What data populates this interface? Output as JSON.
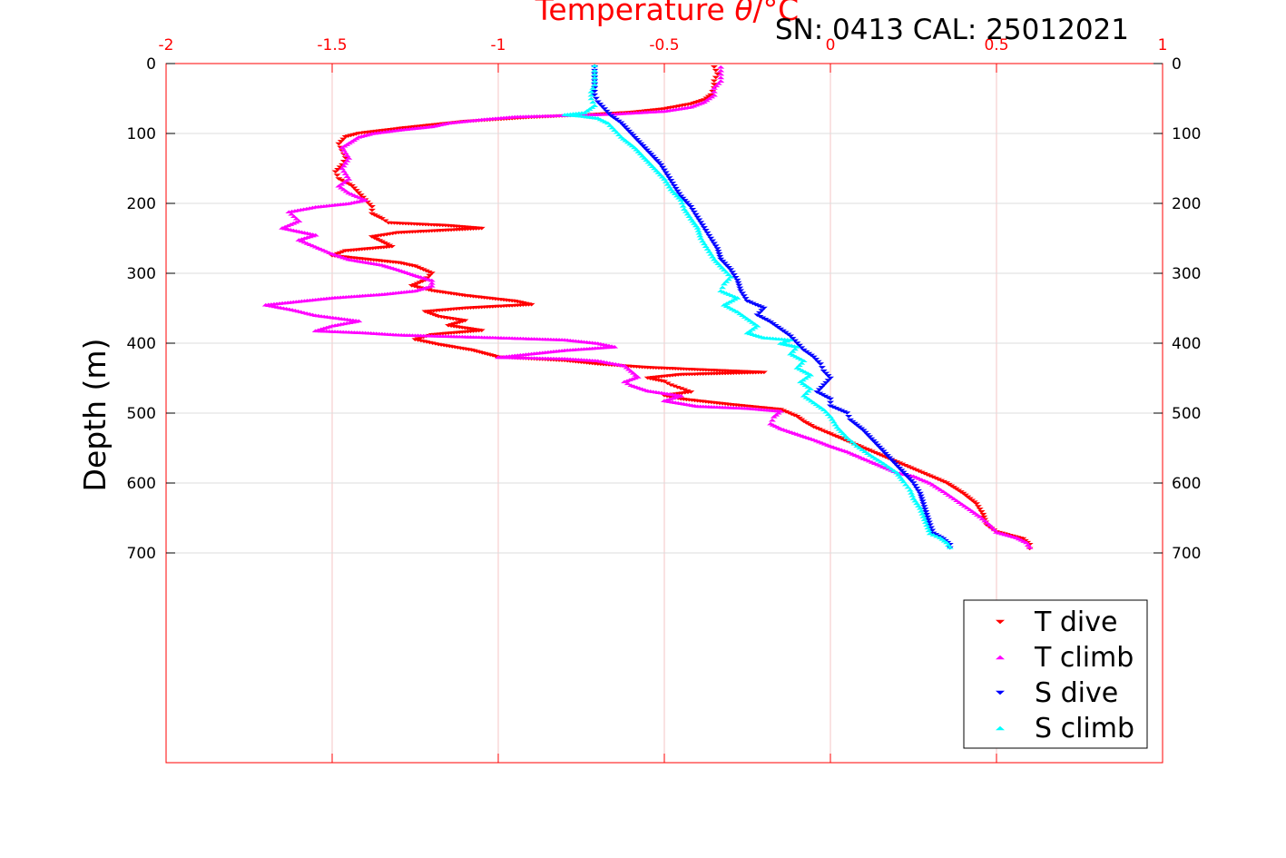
{
  "chart_data": {
    "type": "scatter",
    "title": "SN: 0413  CAL: 25012021",
    "xlabel_text": "Temperature ",
    "xlabel_symbol": "θ",
    "xlabel_unit": "/°C",
    "ylabel": "Depth (m)",
    "xlim": [
      -2,
      1
    ],
    "ylim": [
      0,
      1000
    ],
    "y_reversed": true,
    "x_axis_position": "top",
    "x_ticks": [
      "-2",
      "-1.5",
      "-1",
      "-0.5",
      "0",
      "0.5",
      "1"
    ],
    "y_ticks": [
      "0",
      "100",
      "200",
      "300",
      "400",
      "500",
      "600",
      "700"
    ],
    "grid": true,
    "legend_position": "bottom-right",
    "axis_color": "#ff0000",
    "series": [
      {
        "name": "T dive",
        "color": "#ff0000",
        "marker": "triangle-down",
        "points": [
          [
            -0.35,
            5
          ],
          [
            -0.34,
            15
          ],
          [
            -0.35,
            25
          ],
          [
            -0.35,
            35
          ],
          [
            -0.36,
            45
          ],
          [
            -0.38,
            52
          ],
          [
            -0.42,
            58
          ],
          [
            -0.5,
            65
          ],
          [
            -0.6,
            70
          ],
          [
            -0.75,
            74
          ],
          [
            -0.9,
            77
          ],
          [
            -1.0,
            80
          ],
          [
            -1.1,
            83
          ],
          [
            -1.2,
            88
          ],
          [
            -1.28,
            92
          ],
          [
            -1.35,
            96
          ],
          [
            -1.42,
            100
          ],
          [
            -1.46,
            105
          ],
          [
            -1.48,
            115
          ],
          [
            -1.47,
            125
          ],
          [
            -1.46,
            135
          ],
          [
            -1.47,
            145
          ],
          [
            -1.49,
            155
          ],
          [
            -1.48,
            165
          ],
          [
            -1.44,
            175
          ],
          [
            -1.42,
            185
          ],
          [
            -1.4,
            195
          ],
          [
            -1.38,
            205
          ],
          [
            -1.38,
            215
          ],
          [
            -1.35,
            222
          ],
          [
            -1.33,
            228
          ],
          [
            -1.15,
            232
          ],
          [
            -1.05,
            236
          ],
          [
            -1.3,
            242
          ],
          [
            -1.38,
            248
          ],
          [
            -1.35,
            255
          ],
          [
            -1.32,
            262
          ],
          [
            -1.46,
            268
          ],
          [
            -1.5,
            275
          ],
          [
            -1.4,
            280
          ],
          [
            -1.3,
            285
          ],
          [
            -1.25,
            290
          ],
          [
            -1.2,
            300
          ],
          [
            -1.22,
            310
          ],
          [
            -1.26,
            318
          ],
          [
            -1.2,
            325
          ],
          [
            -1.1,
            332
          ],
          [
            -0.95,
            340
          ],
          [
            -0.9,
            345
          ],
          [
            -1.1,
            350
          ],
          [
            -1.22,
            355
          ],
          [
            -1.18,
            362
          ],
          [
            -1.1,
            368
          ],
          [
            -1.15,
            375
          ],
          [
            -1.05,
            382
          ],
          [
            -1.2,
            388
          ],
          [
            -1.25,
            395
          ],
          [
            -1.18,
            402
          ],
          [
            -1.08,
            410
          ],
          [
            -1.0,
            420
          ],
          [
            -0.8,
            425
          ],
          [
            -0.7,
            430
          ],
          [
            -0.55,
            435
          ],
          [
            -0.4,
            438
          ],
          [
            -0.3,
            440
          ],
          [
            -0.2,
            442
          ],
          [
            -0.45,
            445
          ],
          [
            -0.55,
            450
          ],
          [
            -0.5,
            455
          ],
          [
            -0.48,
            460
          ],
          [
            -0.45,
            465
          ],
          [
            -0.42,
            470
          ],
          [
            -0.5,
            475
          ],
          [
            -0.45,
            480
          ],
          [
            -0.3,
            488
          ],
          [
            -0.15,
            495
          ],
          [
            -0.1,
            505
          ],
          [
            -0.08,
            512
          ],
          [
            -0.05,
            520
          ],
          [
            0.0,
            530
          ],
          [
            0.05,
            540
          ],
          [
            0.1,
            550
          ],
          [
            0.15,
            560
          ],
          [
            0.2,
            570
          ],
          [
            0.25,
            580
          ],
          [
            0.3,
            590
          ],
          [
            0.35,
            600
          ],
          [
            0.4,
            615
          ],
          [
            0.44,
            630
          ],
          [
            0.46,
            645
          ],
          [
            0.47,
            660
          ],
          [
            0.5,
            670
          ],
          [
            0.58,
            680
          ],
          [
            0.6,
            688
          ],
          [
            0.6,
            694
          ]
        ]
      },
      {
        "name": "T climb",
        "color": "#ff00ff",
        "marker": "triangle-up",
        "points": [
          [
            0.6,
            692
          ],
          [
            0.59,
            685
          ],
          [
            0.56,
            678
          ],
          [
            0.5,
            670
          ],
          [
            0.48,
            660
          ],
          [
            0.45,
            648
          ],
          [
            0.42,
            638
          ],
          [
            0.38,
            625
          ],
          [
            0.34,
            612
          ],
          [
            0.3,
            600
          ],
          [
            0.25,
            590
          ],
          [
            0.2,
            585
          ],
          [
            0.15,
            575
          ],
          [
            0.1,
            565
          ],
          [
            0.05,
            555
          ],
          [
            0.0,
            547
          ],
          [
            -0.05,
            538
          ],
          [
            -0.1,
            530
          ],
          [
            -0.15,
            522
          ],
          [
            -0.18,
            515
          ],
          [
            -0.17,
            505
          ],
          [
            -0.15,
            497
          ],
          [
            -0.25,
            493
          ],
          [
            -0.4,
            490
          ],
          [
            -0.5,
            482
          ],
          [
            -0.45,
            475
          ],
          [
            -0.55,
            468
          ],
          [
            -0.6,
            460
          ],
          [
            -0.62,
            455
          ],
          [
            -0.58,
            448
          ],
          [
            -0.6,
            440
          ],
          [
            -0.62,
            432
          ],
          [
            -0.7,
            425
          ],
          [
            -0.8,
            422
          ],
          [
            -1.0,
            420
          ],
          [
            -0.8,
            410
          ],
          [
            -0.65,
            405
          ],
          [
            -0.7,
            400
          ],
          [
            -0.8,
            395
          ],
          [
            -1.0,
            392
          ],
          [
            -1.3,
            388
          ],
          [
            -1.4,
            385
          ],
          [
            -1.55,
            382
          ],
          [
            -1.5,
            375
          ],
          [
            -1.42,
            368
          ],
          [
            -1.55,
            360
          ],
          [
            -1.62,
            352
          ],
          [
            -1.7,
            345
          ],
          [
            -1.6,
            340
          ],
          [
            -1.5,
            335
          ],
          [
            -1.35,
            330
          ],
          [
            -1.25,
            325
          ],
          [
            -1.2,
            318
          ],
          [
            -1.2,
            310
          ],
          [
            -1.25,
            303
          ],
          [
            -1.3,
            295
          ],
          [
            -1.35,
            288
          ],
          [
            -1.45,
            280
          ],
          [
            -1.5,
            272
          ],
          [
            -1.55,
            262
          ],
          [
            -1.6,
            252
          ],
          [
            -1.55,
            245
          ],
          [
            -1.65,
            235
          ],
          [
            -1.6,
            225
          ],
          [
            -1.63,
            212
          ],
          [
            -1.55,
            205
          ],
          [
            -1.45,
            200
          ],
          [
            -1.4,
            195
          ],
          [
            -1.45,
            185
          ],
          [
            -1.48,
            175
          ],
          [
            -1.45,
            165
          ],
          [
            -1.47,
            150
          ],
          [
            -1.45,
            135
          ],
          [
            -1.47,
            120
          ],
          [
            -1.42,
            105
          ],
          [
            -1.38,
            100
          ],
          [
            -1.3,
            95
          ],
          [
            -1.2,
            90
          ],
          [
            -1.15,
            85
          ],
          [
            -1.05,
            80
          ],
          [
            -0.95,
            76
          ],
          [
            -0.8,
            74
          ],
          [
            -0.65,
            72
          ],
          [
            -0.5,
            68
          ],
          [
            -0.42,
            62
          ],
          [
            -0.38,
            55
          ],
          [
            -0.35,
            45
          ],
          [
            -0.35,
            35
          ],
          [
            -0.33,
            25
          ],
          [
            -0.33,
            15
          ],
          [
            -0.33,
            5
          ]
        ]
      },
      {
        "name": "S dive",
        "color": "#0000ff",
        "marker": "triangle-down",
        "points": [
          [
            -0.71,
            5
          ],
          [
            -0.71,
            15
          ],
          [
            -0.71,
            25
          ],
          [
            -0.71,
            35
          ],
          [
            -0.71,
            45
          ],
          [
            -0.7,
            55
          ],
          [
            -0.68,
            65
          ],
          [
            -0.66,
            75
          ],
          [
            -0.63,
            85
          ],
          [
            -0.6,
            100
          ],
          [
            -0.57,
            115
          ],
          [
            -0.54,
            130
          ],
          [
            -0.51,
            145
          ],
          [
            -0.49,
            160
          ],
          [
            -0.47,
            175
          ],
          [
            -0.45,
            190
          ],
          [
            -0.42,
            205
          ],
          [
            -0.4,
            220
          ],
          [
            -0.38,
            235
          ],
          [
            -0.36,
            250
          ],
          [
            -0.34,
            265
          ],
          [
            -0.33,
            280
          ],
          [
            -0.3,
            295
          ],
          [
            -0.28,
            310
          ],
          [
            -0.27,
            325
          ],
          [
            -0.25,
            340
          ],
          [
            -0.2,
            350
          ],
          [
            -0.22,
            360
          ],
          [
            -0.18,
            370
          ],
          [
            -0.15,
            380
          ],
          [
            -0.12,
            390
          ],
          [
            -0.1,
            400
          ],
          [
            -0.08,
            410
          ],
          [
            -0.05,
            420
          ],
          [
            -0.03,
            430
          ],
          [
            -0.02,
            440
          ],
          [
            0.0,
            450
          ],
          [
            -0.02,
            460
          ],
          [
            -0.04,
            470
          ],
          [
            0.0,
            480
          ],
          [
            0.0,
            490
          ],
          [
            0.05,
            500
          ],
          [
            0.06,
            510
          ],
          [
            0.1,
            525
          ],
          [
            0.13,
            540
          ],
          [
            0.16,
            555
          ],
          [
            0.19,
            570
          ],
          [
            0.22,
            585
          ],
          [
            0.25,
            600
          ],
          [
            0.27,
            615
          ],
          [
            0.28,
            630
          ],
          [
            0.29,
            645
          ],
          [
            0.3,
            660
          ],
          [
            0.31,
            672
          ],
          [
            0.34,
            680
          ],
          [
            0.36,
            688
          ],
          [
            0.36,
            693
          ]
        ]
      },
      {
        "name": "S climb",
        "color": "#00ffff",
        "marker": "triangle-up",
        "points": [
          [
            0.36,
            692
          ],
          [
            0.35,
            685
          ],
          [
            0.33,
            678
          ],
          [
            0.3,
            672
          ],
          [
            0.29,
            660
          ],
          [
            0.28,
            648
          ],
          [
            0.27,
            636
          ],
          [
            0.25,
            622
          ],
          [
            0.24,
            610
          ],
          [
            0.22,
            598
          ],
          [
            0.2,
            585
          ],
          [
            0.16,
            572
          ],
          [
            0.12,
            560
          ],
          [
            0.08,
            547
          ],
          [
            0.05,
            535
          ],
          [
            0.02,
            520
          ],
          [
            0.0,
            505
          ],
          [
            -0.02,
            495
          ],
          [
            -0.05,
            485
          ],
          [
            -0.08,
            475
          ],
          [
            -0.06,
            465
          ],
          [
            -0.09,
            455
          ],
          [
            -0.06,
            445
          ],
          [
            -0.1,
            435
          ],
          [
            -0.08,
            425
          ],
          [
            -0.12,
            415
          ],
          [
            -0.1,
            405
          ],
          [
            -0.15,
            400
          ],
          [
            -0.12,
            395
          ],
          [
            -0.2,
            392
          ],
          [
            -0.25,
            385
          ],
          [
            -0.22,
            375
          ],
          [
            -0.25,
            365
          ],
          [
            -0.28,
            355
          ],
          [
            -0.32,
            345
          ],
          [
            -0.28,
            335
          ],
          [
            -0.33,
            325
          ],
          [
            -0.32,
            315
          ],
          [
            -0.3,
            305
          ],
          [
            -0.32,
            295
          ],
          [
            -0.35,
            280
          ],
          [
            -0.37,
            265
          ],
          [
            -0.39,
            250
          ],
          [
            -0.4,
            235
          ],
          [
            -0.42,
            222
          ],
          [
            -0.44,
            208
          ],
          [
            -0.45,
            195
          ],
          [
            -0.48,
            180
          ],
          [
            -0.5,
            165
          ],
          [
            -0.53,
            150
          ],
          [
            -0.56,
            135
          ],
          [
            -0.59,
            120
          ],
          [
            -0.63,
            105
          ],
          [
            -0.65,
            95
          ],
          [
            -0.67,
            85
          ],
          [
            -0.7,
            78
          ],
          [
            -0.75,
            75
          ],
          [
            -0.8,
            73
          ],
          [
            -0.74,
            70
          ],
          [
            -0.71,
            60
          ],
          [
            -0.72,
            50
          ],
          [
            -0.72,
            40
          ],
          [
            -0.71,
            30
          ],
          [
            -0.71,
            20
          ],
          [
            -0.71,
            10
          ],
          [
            -0.71,
            3
          ]
        ]
      }
    ]
  }
}
